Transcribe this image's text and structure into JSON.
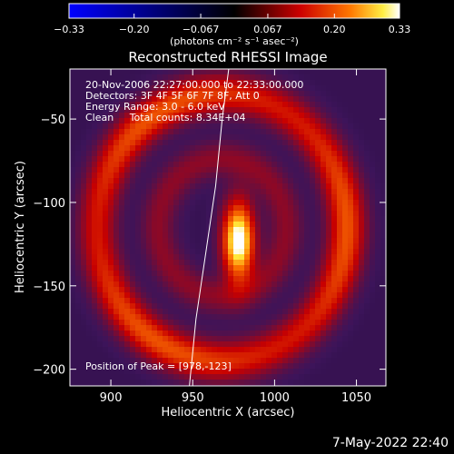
{
  "chart_data": {
    "type": "heatmap",
    "title": "Reconstructed RHESSI Image",
    "xlabel": "Heliocentric X (arcsec)",
    "ylabel": "Heliocentric Y (arcsec)",
    "xlim": [
      875,
      1068
    ],
    "ylim": [
      -210,
      -20
    ],
    "xticks": [
      900,
      950,
      1000,
      1050
    ],
    "yticks": [
      -50,
      -100,
      -150,
      -200
    ],
    "xtick_labels": [
      "900",
      "950",
      "1000",
      "1050"
    ],
    "ytick_labels": [
      "−50",
      "−100",
      "−150",
      "−200"
    ],
    "colorbar": {
      "range": [
        -0.33,
        0.33
      ],
      "ticks": [
        -0.33,
        -0.2,
        -0.067,
        0.067,
        0.2,
        0.33
      ],
      "tick_labels": [
        "−0.33",
        "−0.20",
        "−0.067",
        "0.067",
        "0.20",
        "0.33"
      ],
      "units_label": "(photons cm⁻² s⁻¹ asec⁻²)"
    },
    "annotations": [
      "20-Nov-2006 22:27:00.000 to 22:33:00.000",
      "Detectors: 3F 4F 5F 6F 7F 8F, Att 0",
      "Energy Range: 3.0 - 6.0 keV",
      "Clean     Total counts: 8.34E+04"
    ],
    "peak_label": "Position of Peak = [978,-123]",
    "peak": {
      "x": 978,
      "y": -123,
      "value": 0.33
    },
    "ring": {
      "center_x": 968,
      "center_y": -115,
      "radius": 78,
      "value": 0.17
    },
    "limb_line": {
      "x": [
        948,
        952,
        958,
        964,
        968,
        972
      ],
      "y": [
        -210,
        -170,
        -130,
        -90,
        -50,
        -20
      ]
    }
  },
  "footer": {
    "date_stamp": "7-May-2022 22:40"
  }
}
